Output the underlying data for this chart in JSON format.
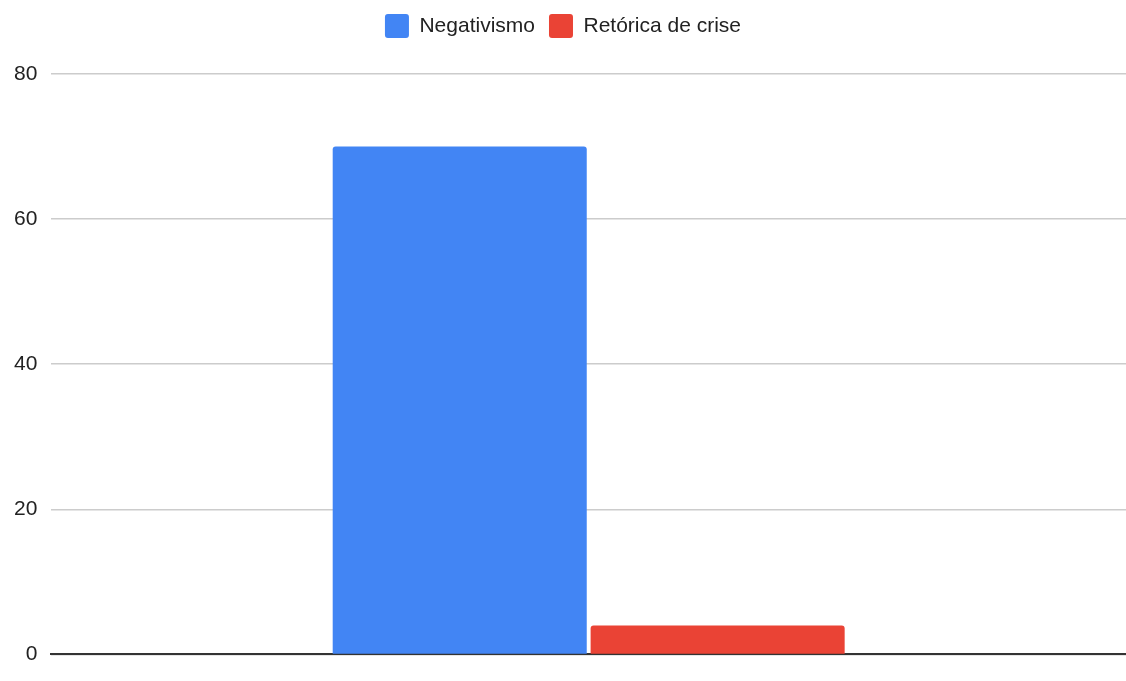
{
  "chart_data": {
    "type": "bar",
    "categories": [
      null
    ],
    "series": [
      {
        "name": "Negativismo",
        "color": "#4285f4",
        "values": [
          70
        ]
      },
      {
        "name": "Retórica de crise",
        "color": "#ea4335",
        "values": [
          4
        ]
      }
    ],
    "ylim": [
      0,
      80
    ],
    "yticks": [
      0,
      20,
      40,
      60,
      80
    ],
    "grid": "y",
    "legend": "top",
    "tick_labels": "y"
  }
}
